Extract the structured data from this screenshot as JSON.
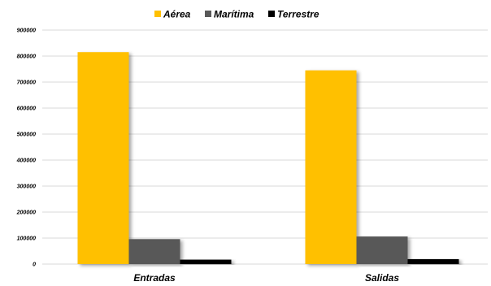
{
  "chart_data": {
    "type": "bar",
    "categories": [
      "Entradas",
      "Salidas"
    ],
    "series": [
      {
        "name": "Aérea",
        "values": [
          815000,
          745000
        ],
        "color": "#ffc000"
      },
      {
        "name": "Marítima",
        "values": [
          96000,
          106000
        ],
        "color": "#595959"
      },
      {
        "name": "Terrestre",
        "values": [
          17000,
          19000
        ],
        "color": "#000000"
      }
    ],
    "ylim": [
      0,
      900000
    ],
    "yticks": [
      "0",
      "100000",
      "200000",
      "300000",
      "400000",
      "500000",
      "600000",
      "700000",
      "800000",
      "900000"
    ],
    "grid": true,
    "legend_position": "top"
  }
}
